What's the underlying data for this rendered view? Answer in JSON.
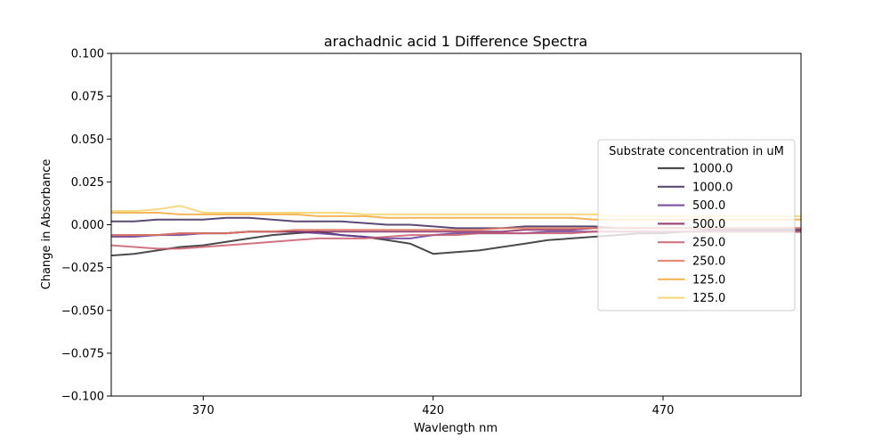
{
  "chart_data": {
    "type": "line",
    "title": "arachadnic acid 1 Difference Spectra",
    "xlabel": "Wavlength nm",
    "ylabel": "Change in Absorbance",
    "xlim": [
      350,
      500
    ],
    "ylim": [
      -0.1,
      0.1
    ],
    "xticks": [
      370,
      420,
      470
    ],
    "yticks": [
      -0.1,
      -0.075,
      -0.05,
      -0.025,
      0.0,
      0.025,
      0.05,
      0.075,
      0.1
    ],
    "ytick_labels": [
      "−0.100",
      "−0.075",
      "−0.050",
      "−0.025",
      "0.000",
      "0.025",
      "0.050",
      "0.075",
      "0.100"
    ],
    "legend": {
      "title": "Substrate concentration in uM",
      "position": "center-right"
    },
    "grid": false,
    "series": [
      {
        "name": "1000.0",
        "color": "#2b2b2b",
        "x": [
          350,
          355,
          360,
          365,
          370,
          375,
          380,
          385,
          390,
          395,
          400,
          405,
          410,
          415,
          420,
          425,
          430,
          435,
          440,
          445,
          450,
          455,
          460,
          465,
          470,
          475,
          480,
          485,
          490,
          495,
          500
        ],
        "values": [
          -0.018,
          -0.017,
          -0.015,
          -0.013,
          -0.012,
          -0.01,
          -0.008,
          -0.006,
          -0.005,
          -0.004,
          -0.006,
          -0.007,
          -0.009,
          -0.011,
          -0.017,
          -0.016,
          -0.015,
          -0.013,
          -0.011,
          -0.009,
          -0.008,
          -0.007,
          -0.006,
          -0.005,
          -0.005,
          -0.004,
          -0.004,
          -0.004,
          -0.004,
          -0.004,
          -0.004
        ]
      },
      {
        "name": "1000.0",
        "color": "#3e2a5c",
        "x": [
          350,
          355,
          360,
          365,
          370,
          375,
          380,
          385,
          390,
          395,
          400,
          405,
          410,
          415,
          420,
          425,
          430,
          435,
          440,
          445,
          450,
          455,
          460,
          465,
          470,
          475,
          480,
          485,
          490,
          495,
          500
        ],
        "values": [
          0.002,
          0.002,
          0.003,
          0.003,
          0.003,
          0.004,
          0.004,
          0.003,
          0.002,
          0.002,
          0.002,
          0.001,
          0.0,
          0.0,
          -0.001,
          -0.002,
          -0.002,
          -0.002,
          -0.001,
          -0.001,
          -0.001,
          -0.001,
          -0.002,
          -0.002,
          -0.002,
          -0.002,
          -0.003,
          -0.003,
          -0.003,
          -0.003,
          -0.003
        ]
      },
      {
        "name": "500.0",
        "color": "#6a3d9a",
        "x": [
          350,
          355,
          360,
          365,
          370,
          375,
          380,
          385,
          390,
          395,
          400,
          405,
          410,
          415,
          420,
          425,
          430,
          435,
          440,
          445,
          450,
          455,
          460,
          465,
          470,
          475,
          480,
          485,
          490,
          495,
          500
        ],
        "values": [
          -0.007,
          -0.007,
          -0.006,
          -0.006,
          -0.005,
          -0.005,
          -0.004,
          -0.004,
          -0.004,
          -0.005,
          -0.006,
          -0.007,
          -0.008,
          -0.008,
          -0.006,
          -0.005,
          -0.005,
          -0.005,
          -0.005,
          -0.004,
          -0.004,
          -0.004,
          -0.004,
          -0.004,
          -0.004,
          -0.004,
          -0.004,
          -0.004,
          -0.004,
          -0.004,
          -0.004
        ]
      },
      {
        "name": "500.0",
        "color": "#8a2a63",
        "x": [
          350,
          355,
          360,
          365,
          370,
          375,
          380,
          385,
          390,
          395,
          400,
          405,
          410,
          415,
          420,
          425,
          430,
          435,
          440,
          445,
          450,
          455,
          460,
          465,
          470,
          475,
          480,
          485,
          490,
          495,
          500
        ],
        "values": [
          -0.006,
          -0.006,
          -0.006,
          -0.005,
          -0.005,
          -0.005,
          -0.004,
          -0.004,
          -0.004,
          -0.004,
          -0.004,
          -0.004,
          -0.004,
          -0.004,
          -0.004,
          -0.004,
          -0.004,
          -0.004,
          -0.003,
          -0.003,
          -0.003,
          -0.002,
          -0.002,
          -0.002,
          -0.002,
          -0.002,
          -0.002,
          -0.002,
          -0.002,
          -0.002,
          -0.002
        ]
      },
      {
        "name": "250.0",
        "color": "#c75c6c",
        "x": [
          350,
          355,
          360,
          365,
          370,
          375,
          380,
          385,
          390,
          395,
          400,
          405,
          410,
          415,
          420,
          425,
          430,
          435,
          440,
          445,
          450,
          455,
          460,
          465,
          470,
          475,
          480,
          485,
          490,
          495,
          500
        ],
        "values": [
          -0.012,
          -0.013,
          -0.014,
          -0.014,
          -0.013,
          -0.012,
          -0.011,
          -0.01,
          -0.009,
          -0.008,
          -0.008,
          -0.008,
          -0.007,
          -0.006,
          -0.006,
          -0.006,
          -0.005,
          -0.005,
          -0.005,
          -0.005,
          -0.005,
          -0.004,
          -0.004,
          -0.004,
          -0.004,
          -0.004,
          -0.004,
          -0.004,
          -0.004,
          -0.004,
          -0.004
        ]
      },
      {
        "name": "250.0",
        "color": "#e07a5f",
        "x": [
          350,
          355,
          360,
          365,
          370,
          375,
          380,
          385,
          390,
          395,
          400,
          405,
          410,
          415,
          420,
          425,
          430,
          435,
          440,
          445,
          450,
          455,
          460,
          465,
          470,
          475,
          480,
          485,
          490,
          495,
          500
        ],
        "values": [
          -0.006,
          -0.006,
          -0.006,
          -0.005,
          -0.005,
          -0.005,
          -0.004,
          -0.004,
          -0.003,
          -0.003,
          -0.003,
          -0.003,
          -0.003,
          -0.003,
          -0.003,
          -0.003,
          -0.003,
          -0.002,
          -0.002,
          -0.002,
          -0.002,
          -0.002,
          -0.002,
          -0.002,
          -0.002,
          -0.002,
          -0.002,
          -0.002,
          -0.002,
          -0.002,
          -0.002
        ]
      },
      {
        "name": "125.0",
        "color": "#f2a93b",
        "x": [
          350,
          355,
          360,
          365,
          370,
          375,
          380,
          385,
          390,
          395,
          400,
          405,
          410,
          415,
          420,
          425,
          430,
          435,
          440,
          445,
          450,
          455,
          460,
          465,
          470,
          475,
          480,
          485,
          490,
          495,
          500
        ],
        "values": [
          0.007,
          0.007,
          0.007,
          0.006,
          0.006,
          0.006,
          0.006,
          0.006,
          0.006,
          0.005,
          0.005,
          0.005,
          0.004,
          0.004,
          0.004,
          0.004,
          0.004,
          0.004,
          0.004,
          0.004,
          0.004,
          0.003,
          0.003,
          0.003,
          0.003,
          0.003,
          0.003,
          0.003,
          0.003,
          0.003,
          0.003
        ]
      },
      {
        "name": "125.0",
        "color": "#f3d36b",
        "x": [
          350,
          355,
          360,
          365,
          370,
          375,
          380,
          385,
          390,
          395,
          400,
          405,
          410,
          415,
          420,
          425,
          430,
          435,
          440,
          445,
          450,
          455,
          460,
          465,
          470,
          475,
          480,
          485,
          490,
          495,
          500
        ],
        "values": [
          0.008,
          0.008,
          0.009,
          0.011,
          0.007,
          0.007,
          0.007,
          0.007,
          0.007,
          0.007,
          0.007,
          0.006,
          0.006,
          0.006,
          0.006,
          0.006,
          0.006,
          0.006,
          0.006,
          0.006,
          0.006,
          0.006,
          0.005,
          0.005,
          0.005,
          0.005,
          0.005,
          0.005,
          0.005,
          0.005,
          0.005
        ]
      }
    ]
  }
}
